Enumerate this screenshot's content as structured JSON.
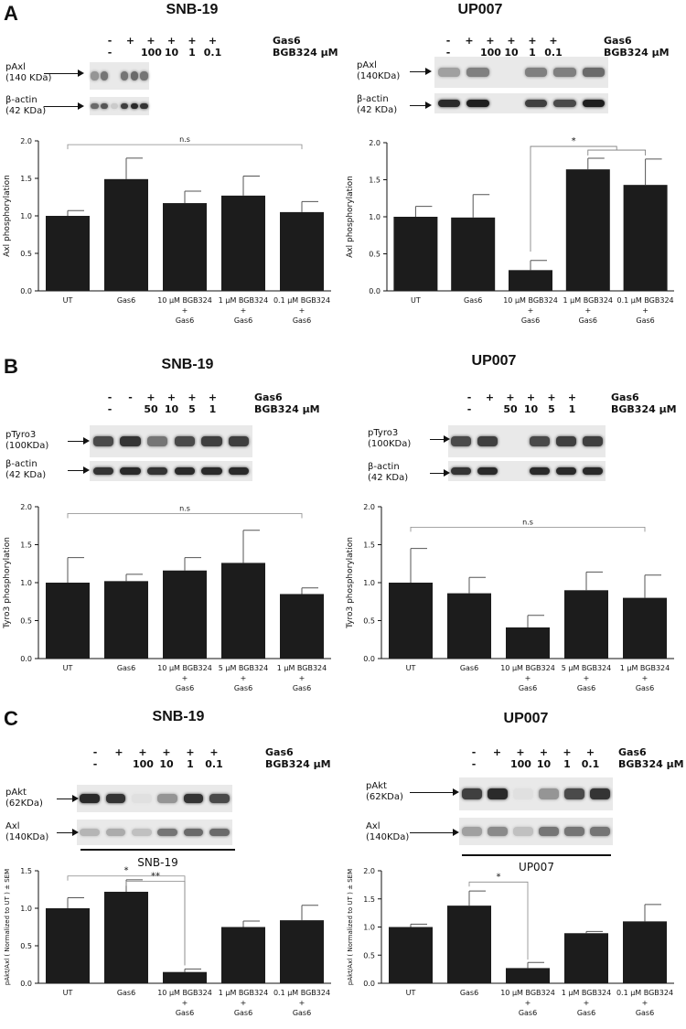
{
  "panels": [
    {
      "label": "A",
      "left_title": "SNB-19",
      "right_title": "UP007"
    },
    {
      "label": "B",
      "left_title": "SNB-19",
      "right_title": "UP007"
    },
    {
      "label": "C",
      "left_title": "SNB-19",
      "right_title": "UP007"
    }
  ],
  "blots": [
    {
      "id": "A-left",
      "gas6_tokens": [
        "-",
        "+",
        "+",
        "+",
        "+",
        "+"
      ],
      "dose_tokens": [
        "-",
        "",
        "100",
        "10",
        "1",
        "0.1"
      ],
      "row_headers": [
        "Gas6",
        "BGB324 μM"
      ],
      "band_labels": [
        [
          "pAxl",
          "(140 KDa)"
        ],
        [
          "β-actin",
          "(42 KDa)"
        ]
      ],
      "caption": ""
    },
    {
      "id": "A-right",
      "gas6_tokens": [
        "-",
        "+",
        "+",
        "+",
        "+",
        "+"
      ],
      "dose_tokens": [
        "-",
        "",
        "100",
        "10",
        "1",
        "0.1"
      ],
      "row_headers": [
        "Gas6",
        "BGB324 μM"
      ],
      "band_labels": [
        [
          "pAxl",
          "(140KDa)"
        ],
        [
          "β-actin",
          "(42 KDa)"
        ]
      ],
      "caption": ""
    },
    {
      "id": "B-left",
      "gas6_tokens": [
        "-",
        "-",
        "+",
        "+",
        "+",
        "+"
      ],
      "dose_tokens": [
        "-",
        "",
        "50",
        "10",
        "5",
        "1"
      ],
      "row_headers": [
        "Gas6",
        "BGB324 μM"
      ],
      "band_labels": [
        [
          "pTyro3",
          "(100KDa)"
        ],
        [
          "β-actin",
          "(42 KDa)"
        ]
      ],
      "caption": ""
    },
    {
      "id": "B-right",
      "gas6_tokens": [
        "-",
        "+",
        "+",
        "+",
        "+",
        "+"
      ],
      "dose_tokens": [
        "-",
        "",
        "50",
        "10",
        "5",
        "1"
      ],
      "row_headers": [
        "Gas6",
        "BGB324 μM"
      ],
      "band_labels": [
        [
          "pTyro3",
          "(100KDa)"
        ],
        [
          "β-actin",
          "(42 KDa)"
        ]
      ],
      "caption": ""
    },
    {
      "id": "C-left",
      "gas6_tokens": [
        "-",
        "+",
        "+",
        "+",
        "+",
        "+"
      ],
      "dose_tokens": [
        "-",
        "",
        "100",
        "10",
        "1",
        "0.1"
      ],
      "row_headers": [
        "Gas6",
        "BGB324 μM"
      ],
      "band_labels": [
        [
          "pAkt",
          "(62KDa)"
        ],
        [
          "Axl",
          "(140KDa)"
        ]
      ],
      "caption": "SNB-19"
    },
    {
      "id": "C-right",
      "gas6_tokens": [
        "-",
        "+",
        "+",
        "+",
        "+",
        "+"
      ],
      "dose_tokens": [
        "-",
        "",
        "100",
        "10",
        "1",
        "0.1"
      ],
      "row_headers": [
        "Gas6",
        "BGB324 μM"
      ],
      "band_labels": [
        [
          "pAkt",
          "(62KDa)"
        ],
        [
          "Axl",
          "(140KDa)"
        ]
      ],
      "caption": "UP007"
    }
  ],
  "chart_data": [
    {
      "id": "A-left",
      "type": "bar",
      "title": "",
      "xlabel": "",
      "ylabel": "Axl phosphorylation",
      "ylim": [
        0,
        2.0
      ],
      "yticks": [
        "0.0",
        "0.5",
        "1.0",
        "1.5",
        "2.0"
      ],
      "categories": [
        [
          "UT"
        ],
        [
          "Gas6"
        ],
        [
          "10 μM BGB324",
          "+",
          "Gas6"
        ],
        [
          "1 μM BGB324",
          "+",
          "Gas6"
        ],
        [
          "0.1 μM BGB324",
          "+",
          "Gas6"
        ]
      ],
      "values": [
        1.0,
        1.49,
        1.17,
        1.27,
        1.05
      ],
      "errors": [
        0.07,
        0.28,
        0.16,
        0.26,
        0.14
      ],
      "annotations": [
        {
          "text": "n.s",
          "from": 0,
          "to": 4,
          "y": 1.95
        }
      ]
    },
    {
      "id": "A-right",
      "type": "bar",
      "title": "",
      "xlabel": "",
      "ylabel": "Axl phosphorylation",
      "ylim": [
        0,
        2.0
      ],
      "yticks": [
        "0.0",
        "0.5",
        "1.0",
        "1.5",
        "2.0"
      ],
      "categories": [
        [
          "UT"
        ],
        [
          "Gas6"
        ],
        [
          "10 μM BGB324",
          "+",
          "Gas6"
        ],
        [
          "1 μM BGB324",
          "+",
          "Gas6"
        ],
        [
          "0.1 μM BGB324",
          "+",
          "Gas6"
        ]
      ],
      "values": [
        1.0,
        0.99,
        0.28,
        1.64,
        1.43
      ],
      "errors": [
        0.14,
        0.31,
        0.13,
        0.15,
        0.35
      ],
      "annotations": [
        {
          "text": "*",
          "from": 2,
          "to": 3,
          "to2": 4,
          "y": 1.95,
          "bracket": "fork"
        }
      ]
    },
    {
      "id": "B-left",
      "type": "bar",
      "title": "",
      "xlabel": "",
      "ylabel": "Tyro3 phosphorylation",
      "ylim": [
        0,
        2.0
      ],
      "yticks": [
        "0.0",
        "0.5",
        "1.0",
        "1.5",
        "2.0"
      ],
      "categories": [
        [
          "UT"
        ],
        [
          "Gas6"
        ],
        [
          "10 μM BGB324",
          "+",
          "Gas6"
        ],
        [
          "5 μM BGB324",
          "+",
          "Gas6"
        ],
        [
          "1 μM BGB324",
          "+",
          "Gas6"
        ]
      ],
      "values": [
        1.0,
        1.02,
        1.16,
        1.26,
        0.85
      ],
      "errors": [
        0.33,
        0.09,
        0.17,
        0.43,
        0.08
      ],
      "annotations": [
        {
          "text": "n.s",
          "from": 0,
          "to": 4,
          "y": 1.91
        }
      ]
    },
    {
      "id": "B-right",
      "type": "bar",
      "title": "",
      "xlabel": "",
      "ylabel": "Tyro3 phosphorylation",
      "ylim": [
        0,
        2.0
      ],
      "yticks": [
        "0.0",
        "0.5",
        "1.0",
        "1.5",
        "2.0"
      ],
      "categories": [
        [
          "UT"
        ],
        [
          "Gas6"
        ],
        [
          "10 μM BGB324",
          "+",
          "Gas6"
        ],
        [
          "5 μM BGB324",
          "+",
          "Gas6"
        ],
        [
          "1 μM BGB324",
          "+",
          "Gas6"
        ]
      ],
      "values": [
        1.0,
        0.86,
        0.41,
        0.9,
        0.8
      ],
      "errors": [
        0.45,
        0.21,
        0.16,
        0.24,
        0.3
      ],
      "annotations": [
        {
          "text": "n.s",
          "from": 0,
          "to": 4,
          "y": 1.73
        }
      ]
    },
    {
      "id": "C-left",
      "type": "bar",
      "title": "",
      "xlabel": "",
      "ylabel": "pAkt/Axl ( Normalized to UT ) ± SEM",
      "ylim": [
        0,
        1.5
      ],
      "yticks": [
        "0.0",
        "0.5",
        "1.0",
        "1.5"
      ],
      "categories": [
        [
          "UT"
        ],
        [
          "Gas6"
        ],
        [
          "10 μM BGB324",
          "+",
          "Gas6"
        ],
        [
          "1 μM BGB324",
          "+",
          "Gas6"
        ],
        [
          "0.1 μM BGB324",
          "+",
          "Gas6"
        ]
      ],
      "values": [
        1.0,
        1.22,
        0.15,
        0.75,
        0.84
      ],
      "errors": [
        0.14,
        0.16,
        0.04,
        0.08,
        0.2
      ],
      "annotations": [
        {
          "text": "*",
          "from": 0,
          "to": 2,
          "y": 1.43
        },
        {
          "text": "**",
          "from": 1,
          "to": 2,
          "y": 1.36
        }
      ]
    },
    {
      "id": "C-right",
      "type": "bar",
      "title": "",
      "xlabel": "",
      "ylabel": "pAkt/Axl ( Normalized to UT ) ± SEM",
      "ylim": [
        0,
        2.0
      ],
      "yticks": [
        "0.0",
        "0.5",
        "1.0",
        "1.5",
        "2.0"
      ],
      "categories": [
        [
          "UT"
        ],
        [
          "Gas6"
        ],
        [
          "10 μM BGB324",
          "+",
          "Gas6"
        ],
        [
          "1 μM BGB324",
          "+",
          "Gas6"
        ],
        [
          "0.1 μM BGB324",
          "+",
          "Gas6"
        ]
      ],
      "values": [
        1.0,
        1.38,
        0.27,
        0.89,
        1.1
      ],
      "errors": [
        0.05,
        0.26,
        0.1,
        0.03,
        0.3
      ],
      "annotations": [
        {
          "text": "*",
          "from": 1,
          "to": 2,
          "y": 1.8
        }
      ]
    }
  ]
}
